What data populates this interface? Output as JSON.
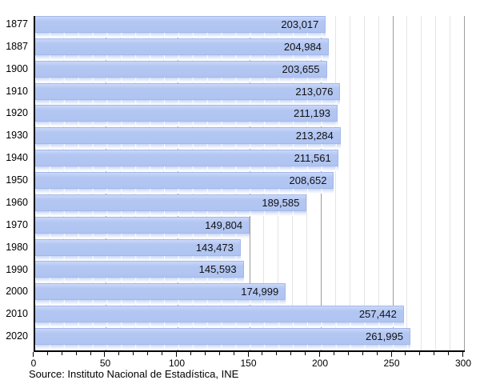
{
  "chart_data": {
    "type": "bar",
    "orientation": "horizontal",
    "title": "",
    "xlabel": "",
    "ylabel": "",
    "categories": [
      "1877",
      "1887",
      "1900",
      "1910",
      "1920",
      "1930",
      "1940",
      "1950",
      "1960",
      "1970",
      "1980",
      "1990",
      "2000",
      "2010",
      "2020"
    ],
    "values": [
      203017,
      204984,
      203655,
      213076,
      211193,
      213284,
      211561,
      208652,
      189585,
      149804,
      143473,
      145593,
      174999,
      257442,
      261995
    ],
    "value_labels": [
      "203,017",
      "204,984",
      "203,655",
      "213,076",
      "211,193",
      "213,284",
      "211,561",
      "208,652",
      "189,585",
      "149,804",
      "143,473",
      "145,593",
      "174,999",
      "257,442",
      "261,995"
    ],
    "value_scale_per_axis_unit": 1000,
    "xlim": [
      0,
      300
    ],
    "x_major_ticks": [
      0,
      50,
      100,
      150,
      200,
      250,
      300
    ],
    "x_minor_step": 10,
    "grid": "vertical",
    "legend": "none",
    "source": "Source: Instituto Nacional de Estadística, INE",
    "colors": {
      "bar": "#b3c7f3",
      "bar_edge": "#a3b8ea",
      "grid_minor": "#e4e4e4",
      "grid_major": "#9c9c9c",
      "axis": "#000000",
      "text": "#000000"
    }
  }
}
